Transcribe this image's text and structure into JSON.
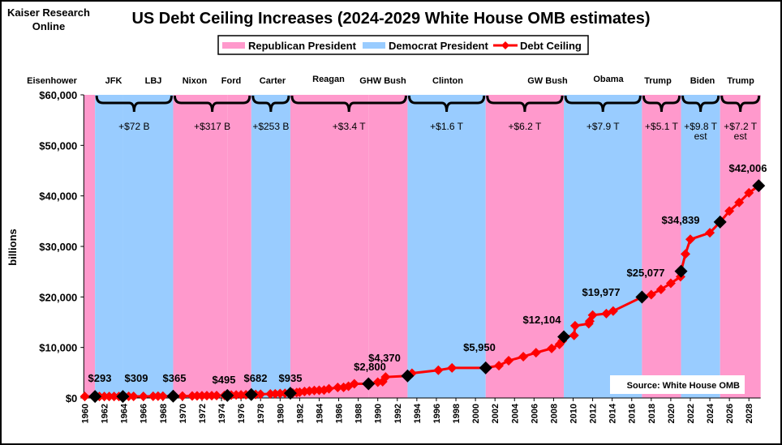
{
  "header": {
    "source_line1": "Kaiser Research",
    "source_line2": "Online"
  },
  "chart_data": {
    "type": "line",
    "title": "US Debt Ceiling Increases (2024-2029 White House OMB estimates)",
    "xlabel": "",
    "ylabel": "billions",
    "xlim": [
      1959.9,
      2029.2
    ],
    "ylim": [
      0,
      60000
    ],
    "yticks": [
      0,
      10000,
      20000,
      30000,
      40000,
      50000,
      60000
    ],
    "ytick_labels": [
      "$0",
      "$10,000",
      "$20,000",
      "$30,000",
      "$40,000",
      "$50,000",
      "$60,000"
    ],
    "xticks": [
      1960,
      1962,
      1964,
      1966,
      1968,
      1970,
      1972,
      1974,
      1976,
      1978,
      1980,
      1982,
      1984,
      1986,
      1988,
      1990,
      1992,
      1994,
      1996,
      1998,
      2000,
      2002,
      2004,
      2006,
      2008,
      2010,
      2012,
      2014,
      2016,
      2018,
      2020,
      2022,
      2024,
      2026,
      2028
    ],
    "grid": false,
    "legend": {
      "placement": "top-center",
      "entries": [
        "Republican President",
        "Democrat President",
        "Debt Ceiling"
      ]
    },
    "colors": {
      "republican": "#FF99CC",
      "democrat": "#99CCFF",
      "line": "#FF0000",
      "inauguration_marker": "#000000"
    },
    "presidencies": [
      {
        "name": "Eisenhower",
        "party": "R",
        "start": 1959.9,
        "end": 1961.05
      },
      {
        "name": "JFK",
        "party": "D",
        "start": 1961.05,
        "end": 1963.9
      },
      {
        "name": "LBJ",
        "party": "D",
        "start": 1963.9,
        "end": 1969.05
      },
      {
        "name": "Nixon",
        "party": "R",
        "start": 1969.05,
        "end": 1974.6
      },
      {
        "name": "Ford",
        "party": "R",
        "start": 1974.6,
        "end": 1977.05
      },
      {
        "name": "Carter",
        "party": "D",
        "start": 1977.05,
        "end": 1981.05
      },
      {
        "name": "Reagan",
        "party": "R",
        "start": 1981.05,
        "end": 1989.05
      },
      {
        "name": "GHW Bush",
        "party": "R",
        "start": 1989.05,
        "end": 1993.05
      },
      {
        "name": "Clinton",
        "party": "D",
        "start": 1993.05,
        "end": 2001.05
      },
      {
        "name": "GW Bush",
        "party": "R",
        "start": 2001.05,
        "end": 2009.05
      },
      {
        "name": "Obama",
        "party": "D",
        "start": 2009.05,
        "end": 2017.05
      },
      {
        "name": "Trump",
        "party": "R",
        "start": 2017.05,
        "end": 2021.05
      },
      {
        "name": "Biden",
        "party": "D",
        "start": 2021.05,
        "end": 2025.05
      },
      {
        "name": "Trump",
        "party": "R",
        "start": 2025.05,
        "end": 2029.2
      }
    ],
    "brace_groups": [
      {
        "start": 1961.05,
        "end": 1969.05,
        "label": "+$72 B",
        "note": ""
      },
      {
        "start": 1969.05,
        "end": 1977.05,
        "label": "+$317 B",
        "note": ""
      },
      {
        "start": 1977.05,
        "end": 1981.05,
        "label": "+$253 B",
        "note": ""
      },
      {
        "start": 1981.05,
        "end": 1993.05,
        "label": "+$3.4 T",
        "note": ""
      },
      {
        "start": 1993.05,
        "end": 2001.05,
        "label": "+$1.6 T",
        "note": ""
      },
      {
        "start": 2001.05,
        "end": 2009.05,
        "label": "+$6.2 T",
        "note": ""
      },
      {
        "start": 2009.05,
        "end": 2017.05,
        "label": "+$7.9 T",
        "note": ""
      },
      {
        "start": 2017.05,
        "end": 2021.05,
        "label": "+$5.1 T",
        "note": ""
      },
      {
        "start": 2021.05,
        "end": 2025.05,
        "label": "+$9.8 T",
        "note": "est"
      },
      {
        "start": 2025.05,
        "end": 2029.2,
        "label": "+$7.2 T",
        "note": "est"
      }
    ],
    "series": [
      {
        "name": "Debt Ceiling",
        "x": [
          1960,
          1961.5,
          1962,
          1962.5,
          1963,
          1963.5,
          1964.5,
          1965,
          1966,
          1967,
          1967.5,
          1968,
          1970,
          1971,
          1971.5,
          1972,
          1972.5,
          1973,
          1973.5,
          1974.3,
          1975,
          1975.5,
          1976,
          1976.5,
          1977.5,
          1978,
          1979,
          1979.5,
          1980,
          1980.5,
          1981.3,
          1981.7,
          1982,
          1982.5,
          1983,
          1983.5,
          1984,
          1984.5,
          1985,
          1985.9,
          1986.5,
          1987,
          1987.6,
          1990,
          1990.5,
          1990.8,
          1993.5,
          1996.2,
          1997.6,
          2002.4,
          2003.4,
          2004.9,
          2006.2,
          2007.8,
          2008.6,
          2008.9,
          2010.1,
          2010.2,
          2011.6,
          2011.7,
          2012,
          2013.4,
          2014.1,
          2018,
          2019,
          2020,
          2021,
          2021.5,
          2022,
          2024,
          2026,
          2027,
          2028
        ],
        "y": [
          293,
          298,
          300,
          308,
          305,
          309,
          324,
          324,
          328,
          336,
          358,
          365,
          377,
          395,
          430,
          450,
          465,
          465,
          475,
          495,
          577,
          595,
          627,
          636,
          700,
          752,
          798,
          830,
          879,
          925,
          985,
          1079,
          1143,
          1290,
          1389,
          1490,
          1520,
          1573,
          1824,
          2079,
          2111,
          2320,
          2800,
          3123,
          3230,
          4145,
          4900,
          5500,
          5950,
          6400,
          7384,
          8184,
          8965,
          9815,
          10615,
          11315,
          12394,
          14294,
          14694,
          15194,
          16394,
          16699,
          17212,
          20456,
          21500,
          22700,
          24000,
          28500,
          31400,
          32700,
          37000,
          38700,
          40600
        ]
      },
      {
        "name": "Inauguration values",
        "x": [
          1961.05,
          1963.9,
          1969.05,
          1974.6,
          1977.05,
          1981.05,
          1989.05,
          1993.05,
          2001.05,
          2009.05,
          2017.05,
          2021.05,
          2025.05,
          2029.0
        ],
        "y": [
          293,
          309,
          365,
          495,
          682,
          935,
          2800,
          4370,
          5950,
          12104,
          19977,
          25077,
          34839,
          42006
        ],
        "labels": [
          "$293",
          "$309",
          "$365",
          "$495",
          "$682",
          "$935",
          "$2,800",
          "$4,370",
          "$5,950",
          "$12,104",
          "$19,977",
          "$25,077",
          "$34,839",
          "$42,006"
        ]
      }
    ],
    "annotations": [
      "Source: White House OMB"
    ]
  }
}
